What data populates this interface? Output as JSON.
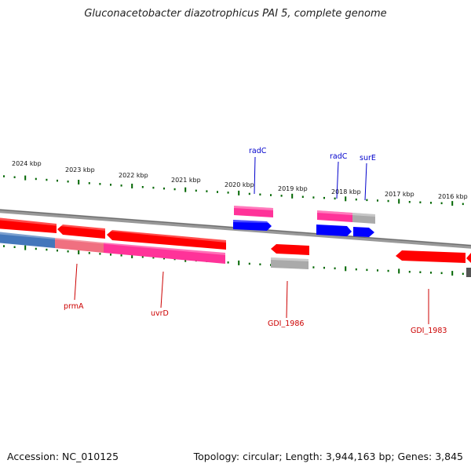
{
  "title": "Gluconacetobacter diazotrophicus PAI 5, complete genome",
  "footer": {
    "accession": "Accession: NC_010125",
    "summary": "Topology: circular; Length: 3,944,163 bp; Genes: 3,845"
  },
  "scale_ticks": [
    {
      "kbp": 2024,
      "label": "2024 kbp"
    },
    {
      "kbp": 2023,
      "label": "2023 kbp"
    },
    {
      "kbp": 2022,
      "label": "2022 kbp"
    },
    {
      "kbp": 2021,
      "label": "2021 kbp"
    },
    {
      "kbp": 2020,
      "label": "2020 kbp"
    },
    {
      "kbp": 2019,
      "label": "2019 kbp"
    },
    {
      "kbp": 2018,
      "label": "2018 kbp"
    },
    {
      "kbp": 2017,
      "label": "2017 kbp"
    },
    {
      "kbp": 2016,
      "label": "2016 kbp"
    }
  ],
  "gene_labels": [
    {
      "name": "radC",
      "color": "#0000cc"
    },
    {
      "name": "radC",
      "color": "#0000cc"
    },
    {
      "name": "surE",
      "color": "#0000cc"
    },
    {
      "name": "prmA",
      "color": "#cc0000"
    },
    {
      "name": "uvrD",
      "color": "#cc0000"
    },
    {
      "name": "GDI_1986",
      "color": "#cc0000"
    },
    {
      "name": "GDI_1983",
      "color": "#cc0000"
    }
  ],
  "colors": {
    "cds": "#ff0000",
    "gene": "#ff3399",
    "rna": "#0000ff",
    "other": "#aaaaaa",
    "backbone": "#888888",
    "tick": "#006600",
    "label_forward": "#0000cc",
    "label_reverse": "#cc0000"
  }
}
